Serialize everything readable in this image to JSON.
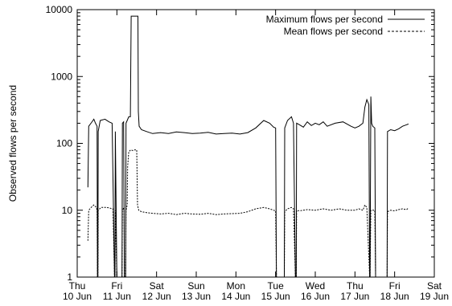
{
  "chart_data": {
    "type": "line",
    "title": "",
    "xlabel": "",
    "ylabel": "Observed flows per second",
    "yscale": "log",
    "ylim": [
      1,
      10000
    ],
    "y_ticks": [
      "1",
      "10",
      "100",
      "1000",
      "10000"
    ],
    "x_ticks": [
      [
        "Thu",
        "10 Jun"
      ],
      [
        "Fri",
        "11 Jun"
      ],
      [
        "Sat",
        "12 Jun"
      ],
      [
        "Sun",
        "13 Jun"
      ],
      [
        "Mon",
        "14 Jun"
      ],
      [
        "Tue",
        "15 Jun"
      ],
      [
        "Wed",
        "16 Jun"
      ],
      [
        "Thu",
        "17 Jun"
      ],
      [
        "Fri",
        "18 Jun"
      ],
      [
        "Sat",
        "19 Jun"
      ]
    ],
    "x_range_days": [
      0,
      9
    ],
    "legend": {
      "position": "top-right"
    },
    "series": [
      {
        "name": "Maximum flows per second",
        "style": "solid",
        "points": [
          [
            0.27,
            22
          ],
          [
            0.29,
            180
          ],
          [
            0.36,
            205
          ],
          [
            0.42,
            230
          ],
          [
            0.46,
            200
          ],
          [
            0.5,
            180
          ],
          [
            0.51,
            1
          ],
          [
            0.52,
            1
          ],
          [
            0.53,
            150
          ],
          [
            0.58,
            220
          ],
          [
            0.7,
            230
          ],
          [
            0.8,
            210
          ],
          [
            0.88,
            200
          ],
          [
            0.94,
            1
          ],
          [
            0.95,
            1
          ],
          [
            0.96,
            150
          ],
          [
            1.0,
            1
          ],
          [
            1.01,
            1
          ],
          [
            1.12,
            1
          ],
          [
            1.13,
            1
          ],
          [
            1.14,
            200
          ],
          [
            1.17,
            210
          ],
          [
            1.19,
            1
          ],
          [
            1.22,
            1
          ],
          [
            1.23,
            200
          ],
          [
            1.3,
            250
          ],
          [
            1.34,
            250
          ],
          [
            1.36,
            8000
          ],
          [
            1.38,
            8000
          ],
          [
            1.42,
            8000
          ],
          [
            1.5,
            8000
          ],
          [
            1.53,
            8000
          ],
          [
            1.54,
            300
          ],
          [
            1.56,
            180
          ],
          [
            1.62,
            160
          ],
          [
            1.75,
            150
          ],
          [
            1.9,
            140
          ],
          [
            2.1,
            145
          ],
          [
            2.3,
            140
          ],
          [
            2.5,
            148
          ],
          [
            2.7,
            145
          ],
          [
            2.9,
            140
          ],
          [
            3.1,
            142
          ],
          [
            3.3,
            146
          ],
          [
            3.5,
            138
          ],
          [
            3.7,
            140
          ],
          [
            3.9,
            142
          ],
          [
            4.1,
            138
          ],
          [
            4.3,
            145
          ],
          [
            4.5,
            170
          ],
          [
            4.7,
            220
          ],
          [
            4.85,
            200
          ],
          [
            4.95,
            175
          ],
          [
            5.0,
            170
          ],
          [
            5.02,
            1
          ],
          [
            5.22,
            1
          ],
          [
            5.23,
            170
          ],
          [
            5.3,
            220
          ],
          [
            5.4,
            250
          ],
          [
            5.45,
            200
          ],
          [
            5.5,
            1
          ],
          [
            5.52,
            1
          ],
          [
            5.53,
            200
          ],
          [
            5.6,
            190
          ],
          [
            5.7,
            175
          ],
          [
            5.8,
            210
          ],
          [
            5.9,
            185
          ],
          [
            6.0,
            200
          ],
          [
            6.1,
            190
          ],
          [
            6.2,
            210
          ],
          [
            6.3,
            180
          ],
          [
            6.5,
            200
          ],
          [
            6.7,
            210
          ],
          [
            6.9,
            180
          ],
          [
            7.0,
            170
          ],
          [
            7.1,
            180
          ],
          [
            7.2,
            200
          ],
          [
            7.25,
            350
          ],
          [
            7.3,
            450
          ],
          [
            7.35,
            380
          ],
          [
            7.37,
            1
          ],
          [
            7.38,
            1
          ],
          [
            7.4,
            500
          ],
          [
            7.42,
            200
          ],
          [
            7.45,
            180
          ],
          [
            7.5,
            170
          ],
          [
            7.52,
            1
          ],
          [
            7.81,
            1
          ],
          [
            7.82,
            150
          ],
          [
            7.9,
            160
          ],
          [
            8.0,
            155
          ],
          [
            8.1,
            165
          ],
          [
            8.2,
            180
          ],
          [
            8.3,
            190
          ],
          [
            8.35,
            195
          ]
        ]
      },
      {
        "name": "Mean flows per second",
        "style": "dashed",
        "points": [
          [
            0.27,
            3.5
          ],
          [
            0.29,
            10
          ],
          [
            0.35,
            11
          ],
          [
            0.42,
            12
          ],
          [
            0.48,
            11
          ],
          [
            0.5,
            10
          ],
          [
            0.51,
            1
          ],
          [
            0.52,
            1
          ],
          [
            0.53,
            10
          ],
          [
            0.6,
            11
          ],
          [
            0.75,
            11
          ],
          [
            0.9,
            10.5
          ],
          [
            0.94,
            1
          ],
          [
            0.95,
            1
          ],
          [
            0.96,
            10
          ],
          [
            1.0,
            1
          ],
          [
            1.01,
            1
          ],
          [
            1.12,
            1
          ],
          [
            1.13,
            1
          ],
          [
            1.14,
            10
          ],
          [
            1.18,
            11
          ],
          [
            1.19,
            1
          ],
          [
            1.22,
            1
          ],
          [
            1.23,
            10
          ],
          [
            1.26,
            12
          ],
          [
            1.27,
            45
          ],
          [
            1.3,
            75
          ],
          [
            1.35,
            80
          ],
          [
            1.4,
            78
          ],
          [
            1.45,
            80
          ],
          [
            1.5,
            80
          ],
          [
            1.52,
            12
          ],
          [
            1.55,
            10
          ],
          [
            1.62,
            9.5
          ],
          [
            1.75,
            9.2
          ],
          [
            1.9,
            9
          ],
          [
            2.1,
            8.8
          ],
          [
            2.3,
            9
          ],
          [
            2.5,
            8.6
          ],
          [
            2.7,
            9
          ],
          [
            2.9,
            8.8
          ],
          [
            3.1,
            8.7
          ],
          [
            3.3,
            9
          ],
          [
            3.5,
            8.6
          ],
          [
            3.7,
            8.8
          ],
          [
            3.9,
            8.9
          ],
          [
            4.1,
            9
          ],
          [
            4.3,
            9.5
          ],
          [
            4.5,
            10.5
          ],
          [
            4.7,
            11
          ],
          [
            4.85,
            10.5
          ],
          [
            4.95,
            10
          ],
          [
            5.0,
            9.8
          ],
          [
            5.02,
            1
          ],
          [
            5.22,
            1
          ],
          [
            5.23,
            9.5
          ],
          [
            5.3,
            10.5
          ],
          [
            5.4,
            11
          ],
          [
            5.45,
            10.5
          ],
          [
            5.5,
            1
          ],
          [
            5.52,
            1
          ],
          [
            5.53,
            10
          ],
          [
            5.6,
            9.8
          ],
          [
            5.8,
            10.2
          ],
          [
            6.0,
            10
          ],
          [
            6.2,
            10.5
          ],
          [
            6.4,
            10
          ],
          [
            6.6,
            10.5
          ],
          [
            6.8,
            10
          ],
          [
            7.0,
            10
          ],
          [
            7.1,
            10.5
          ],
          [
            7.2,
            10
          ],
          [
            7.25,
            12
          ],
          [
            7.3,
            11
          ],
          [
            7.37,
            1
          ],
          [
            7.38,
            1
          ],
          [
            7.4,
            10
          ],
          [
            7.5,
            10
          ],
          [
            7.52,
            1
          ],
          [
            7.81,
            1
          ],
          [
            7.82,
            9.5
          ],
          [
            7.9,
            10
          ],
          [
            8.0,
            9.8
          ],
          [
            8.1,
            10.2
          ],
          [
            8.2,
            10.5
          ],
          [
            8.3,
            10.2
          ],
          [
            8.35,
            10.8
          ]
        ]
      }
    ]
  }
}
